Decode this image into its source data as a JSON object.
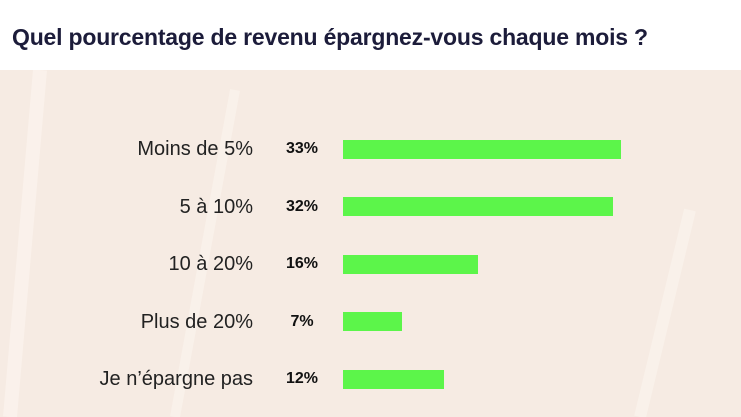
{
  "title": "Quel pourcentage de revenu épargnez-vous chaque mois ?",
  "colors": {
    "background": "#f6ebe3",
    "header_background": "#ffffff",
    "bar": "#5cf54a",
    "title_text": "#1c1c3a"
  },
  "chart_data": {
    "type": "bar",
    "orientation": "horizontal",
    "title": "Quel pourcentage de revenu épargnez-vous chaque mois ?",
    "categories": [
      "Moins de 5%",
      "5 à 10%",
      "10 à 20%",
      "Plus de 20%",
      "Je n’épargne pas"
    ],
    "values": [
      33,
      32,
      16,
      7,
      12
    ],
    "value_labels": [
      "33%",
      "32%",
      "16%",
      "7%",
      "12%"
    ],
    "unit": "%",
    "xlim": [
      0,
      33
    ],
    "xlabel": "",
    "ylabel": "",
    "grid": false,
    "legend": "none"
  }
}
